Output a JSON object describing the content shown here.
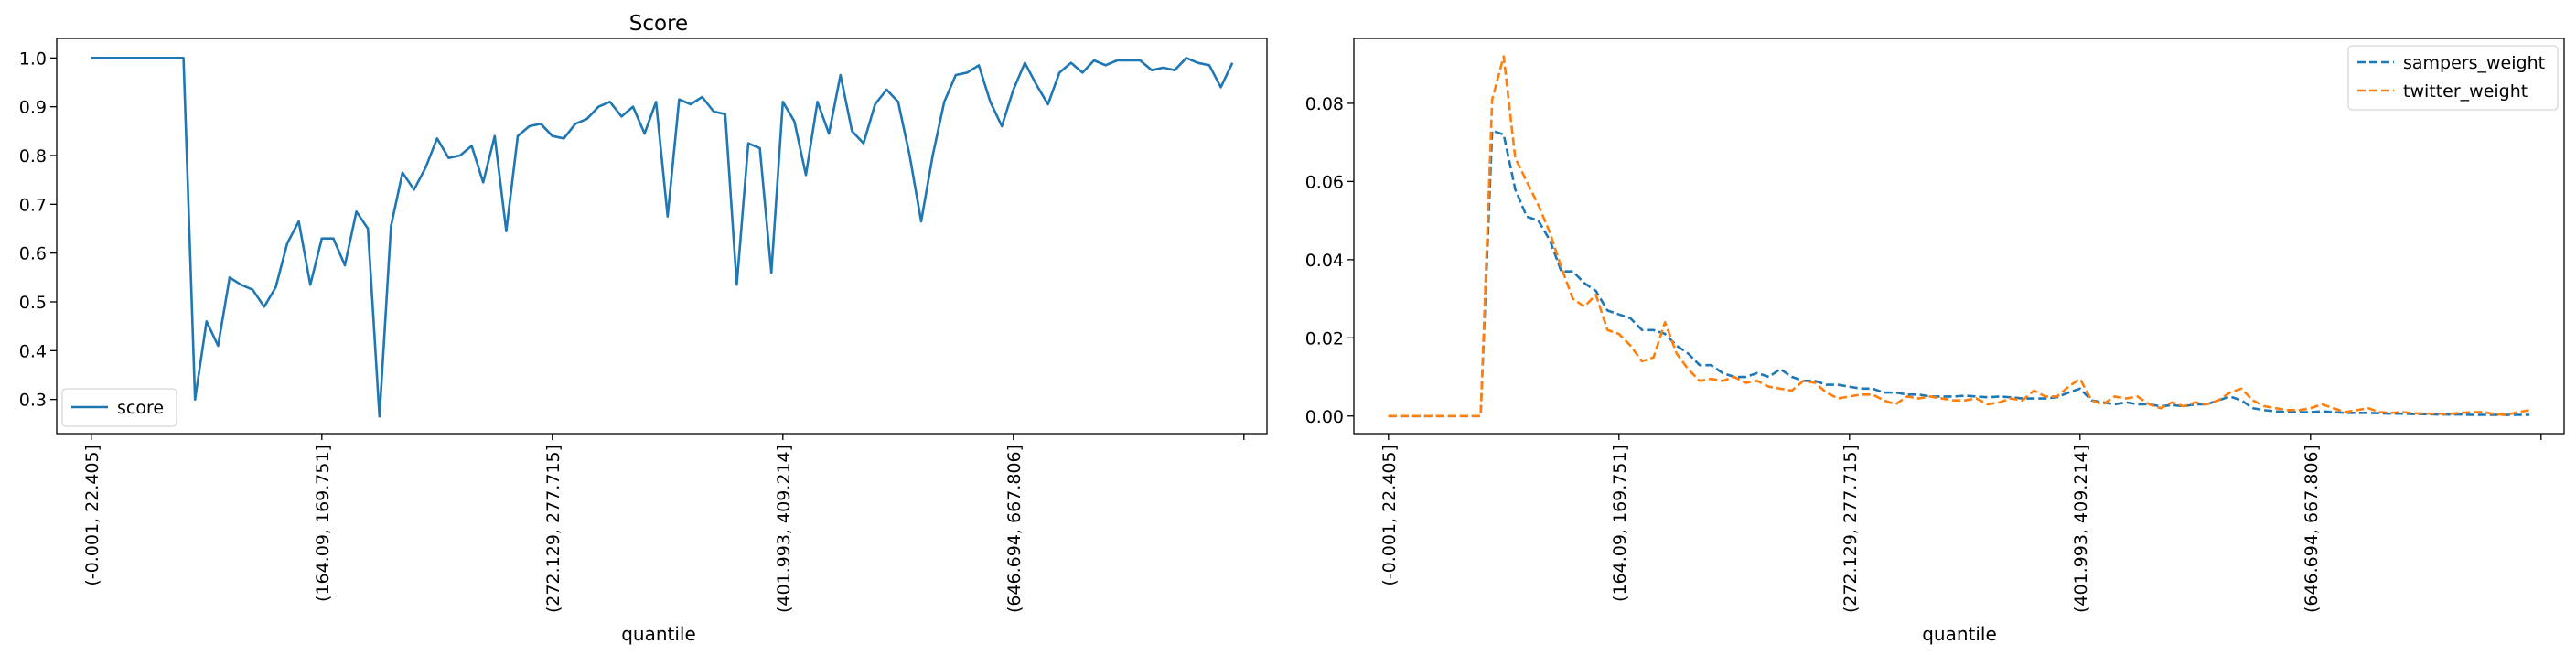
{
  "chart_data": [
    {
      "type": "line",
      "title": "Score",
      "xlabel": "quantile",
      "ylabel": "",
      "xlim": [
        -3,
        102
      ],
      "ylim": [
        0.23,
        1.04
      ],
      "yticks": [
        "0.3",
        "0.4",
        "0.5",
        "0.6",
        "0.7",
        "0.8",
        "0.9",
        "1.0"
      ],
      "xtick_labels": [
        "(-0.001, 22.405]",
        "(164.09, 169.751]",
        "(272.129, 277.715]",
        "(401.993, 409.214]",
        "(646.694, 667.806]",
        ""
      ],
      "xtick_positions": [
        0,
        20,
        40,
        60,
        80,
        100
      ],
      "grid": false,
      "legend": "lower-left",
      "series": [
        {
          "name": "score",
          "color": "#1f77b4",
          "dash": "solid",
          "values": [
            1.0,
            1.0,
            1.0,
            1.0,
            1.0,
            1.0,
            1.0,
            1.0,
            1.0,
            0.3,
            0.46,
            0.41,
            0.55,
            0.535,
            0.525,
            0.49,
            0.53,
            0.62,
            0.665,
            0.535,
            0.63,
            0.63,
            0.575,
            0.685,
            0.65,
            0.265,
            0.655,
            0.765,
            0.73,
            0.775,
            0.835,
            0.795,
            0.8,
            0.82,
            0.745,
            0.84,
            0.645,
            0.84,
            0.86,
            0.865,
            0.84,
            0.835,
            0.865,
            0.875,
            0.9,
            0.91,
            0.88,
            0.9,
            0.845,
            0.91,
            0.675,
            0.915,
            0.905,
            0.92,
            0.89,
            0.885,
            0.535,
            0.825,
            0.815,
            0.56,
            0.91,
            0.87,
            0.76,
            0.91,
            0.845,
            0.965,
            0.85,
            0.825,
            0.905,
            0.935,
            0.91,
            0.8,
            0.665,
            0.8,
            0.91,
            0.965,
            0.97,
            0.985,
            0.91,
            0.86,
            0.935,
            0.99,
            0.945,
            0.905,
            0.97,
            0.99,
            0.97,
            0.995,
            0.985,
            0.995,
            0.995,
            0.995,
            0.975,
            0.98,
            0.975,
            1.0,
            0.99,
            0.985,
            0.94,
            0.99
          ]
        }
      ]
    },
    {
      "type": "line",
      "title": "",
      "xlabel": "quantile",
      "ylabel": "",
      "xlim": [
        -3,
        102
      ],
      "ylim": [
        -0.0045,
        0.0966
      ],
      "yticks": [
        "0.00",
        "0.02",
        "0.04",
        "0.06",
        "0.08"
      ],
      "xtick_labels": [
        "(-0.001, 22.405]",
        "(164.09, 169.751]",
        "(272.129, 277.715]",
        "(401.993, 409.214]",
        "(646.694, 667.806]",
        ""
      ],
      "xtick_positions": [
        0,
        20,
        40,
        60,
        80,
        100
      ],
      "grid": false,
      "legend": "upper-right",
      "series": [
        {
          "name": "sampers_weight",
          "color": "#1f77b4",
          "dash": "dashed",
          "values": [
            0.0,
            0.0,
            0.0,
            0.0,
            0.0,
            0.0,
            0.0,
            0.0,
            0.0,
            0.073,
            0.072,
            0.058,
            0.051,
            0.05,
            0.045,
            0.037,
            0.037,
            0.034,
            0.032,
            0.027,
            0.026,
            0.025,
            0.022,
            0.022,
            0.021,
            0.018,
            0.016,
            0.013,
            0.013,
            0.011,
            0.01,
            0.01,
            0.011,
            0.01,
            0.012,
            0.01,
            0.009,
            0.009,
            0.008,
            0.008,
            0.0075,
            0.007,
            0.007,
            0.006,
            0.006,
            0.0055,
            0.0055,
            0.005,
            0.005,
            0.005,
            0.0052,
            0.005,
            0.0048,
            0.005,
            0.0048,
            0.0045,
            0.0045,
            0.0045,
            0.0048,
            0.006,
            0.007,
            0.004,
            0.0035,
            0.003,
            0.0035,
            0.003,
            0.003,
            0.0025,
            0.0028,
            0.0025,
            0.003,
            0.003,
            0.004,
            0.005,
            0.004,
            0.002,
            0.0015,
            0.0012,
            0.001,
            0.001,
            0.001,
            0.0012,
            0.001,
            0.0008,
            0.0008,
            0.0008,
            0.0007,
            0.0006,
            0.0006,
            0.0005,
            0.0005,
            0.0004,
            0.0004,
            0.0004,
            0.0003,
            0.0003,
            0.0003,
            0.0003,
            0.0003,
            0.0003
          ]
        },
        {
          "name": "twitter_weight",
          "color": "#ff7f0e",
          "dash": "dashed",
          "values": [
            0.0,
            0.0,
            0.0,
            0.0,
            0.0,
            0.0,
            0.0,
            0.0,
            0.0,
            0.081,
            0.092,
            0.066,
            0.06,
            0.054,
            0.047,
            0.038,
            0.03,
            0.028,
            0.031,
            0.022,
            0.021,
            0.018,
            0.014,
            0.015,
            0.024,
            0.016,
            0.012,
            0.009,
            0.0095,
            0.009,
            0.01,
            0.0085,
            0.009,
            0.0075,
            0.007,
            0.0065,
            0.009,
            0.0085,
            0.006,
            0.0045,
            0.005,
            0.0055,
            0.0055,
            0.004,
            0.003,
            0.005,
            0.0045,
            0.005,
            0.0045,
            0.004,
            0.004,
            0.0045,
            0.003,
            0.0035,
            0.0045,
            0.004,
            0.0065,
            0.005,
            0.005,
            0.0075,
            0.0095,
            0.004,
            0.003,
            0.005,
            0.0045,
            0.005,
            0.003,
            0.002,
            0.0035,
            0.0025,
            0.0035,
            0.003,
            0.004,
            0.006,
            0.007,
            0.004,
            0.0025,
            0.002,
            0.0015,
            0.0015,
            0.002,
            0.003,
            0.002,
            0.001,
            0.0015,
            0.002,
            0.001,
            0.0008,
            0.001,
            0.0007,
            0.0006,
            0.0006,
            0.0005,
            0.0008,
            0.001,
            0.001,
            0.0005,
            0.0003,
            0.001,
            0.0015
          ]
        }
      ]
    }
  ]
}
